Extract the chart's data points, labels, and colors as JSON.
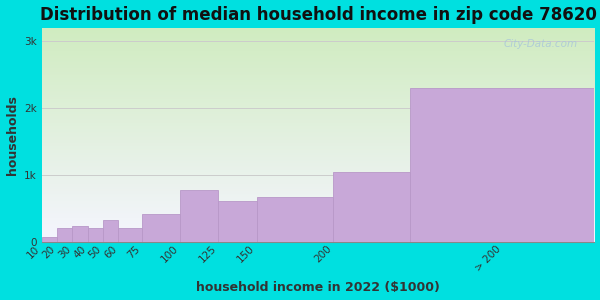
{
  "title": "Distribution of median household income in zip code 78620",
  "xlabel": "household income in 2022 ($1000)",
  "ylabel": "households",
  "bar_left_edges": [
    10,
    20,
    30,
    40,
    50,
    60,
    75,
    100,
    125,
    150,
    200,
    250
  ],
  "bar_widths": [
    10,
    10,
    10,
    10,
    10,
    15,
    25,
    25,
    25,
    50,
    50,
    120
  ],
  "bar_labels": [
    "10",
    "20",
    "30",
    "40",
    "50",
    "60",
    "75",
    "100",
    "125",
    "150",
    "200",
    "> 200"
  ],
  "values": [
    80,
    220,
    240,
    210,
    340,
    210,
    420,
    780,
    620,
    680,
    1050,
    2300
  ],
  "bar_color": "#c8a8d8",
  "bar_edge_color": "#b898c8",
  "background_outer": "#00e0e0",
  "background_plot_top": "#d0ecc0",
  "background_plot_bottom": "#f5f5ff",
  "ylim": [
    0,
    3200
  ],
  "yticks": [
    0,
    1000,
    2000,
    3000
  ],
  "ytick_labels": [
    "0",
    "1k",
    "2k",
    "3k"
  ],
  "xlim_left": 10,
  "xlim_right": 370,
  "xtick_positions": [
    10,
    20,
    30,
    40,
    50,
    60,
    75,
    100,
    125,
    150,
    200,
    310
  ],
  "xtick_labels": [
    "10",
    "20",
    "30",
    "40",
    "50",
    "60",
    "75",
    "100",
    "125",
    "150",
    "200",
    "> 200"
  ],
  "title_fontsize": 12,
  "axis_label_fontsize": 9,
  "tick_fontsize": 7.5,
  "watermark_text": "City-Data.com",
  "watermark_color": "#aac8d8"
}
